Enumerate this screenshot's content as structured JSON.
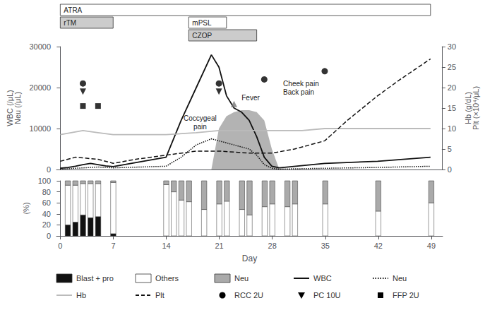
{
  "chart_data": [
    {
      "type": "line",
      "ylabel": "WBC (/μL)\nNeu (/μL)",
      "y2label": "Hb (g/dL)\nPlt (×10⁴/μL)",
      "xlim": [
        -0.5,
        50.5
      ],
      "ylim": [
        0,
        30000
      ],
      "yticks": [
        0,
        10000,
        20000,
        30000
      ],
      "y2lim": [
        0,
        30
      ],
      "y2ticks": [
        0,
        5,
        10,
        15,
        20,
        25,
        30
      ],
      "tick_labels": "y",
      "grid": false,
      "series": [
        {
          "name": "WBC",
          "type": "line",
          "color": "#111111",
          "line_style": "solid",
          "x": [
            0,
            1,
            2,
            3,
            4,
            5,
            6,
            7,
            14,
            16,
            18,
            20,
            21,
            22,
            23,
            24,
            25,
            26,
            27,
            28,
            29,
            35,
            42,
            49
          ],
          "values": [
            300,
            500,
            800,
            1200,
            1500,
            1200,
            900,
            700,
            3000,
            12000,
            20000,
            28000,
            25000,
            18000,
            15000,
            14000,
            12000,
            8000,
            3000,
            800,
            400,
            1500,
            2000,
            3000
          ]
        },
        {
          "name": "Neu",
          "type": "line",
          "color": "#111111",
          "line_style": "dotted",
          "x": [
            0,
            1,
            2,
            3,
            4,
            5,
            6,
            7,
            14,
            16,
            18,
            20,
            21,
            22,
            23,
            24,
            25,
            26,
            27,
            28,
            29,
            35,
            42,
            49
          ],
          "values": [
            100,
            200,
            300,
            400,
            500,
            600,
            500,
            400,
            800,
            3000,
            6000,
            7500,
            7000,
            6500,
            6000,
            5500,
            5000,
            3500,
            1200,
            300,
            100,
            300,
            500,
            800
          ]
        },
        {
          "name": "Hb",
          "type": "line",
          "axis": "y2",
          "color": "#bbbbbb",
          "line_style": "solid",
          "x": [
            0,
            3,
            5,
            7,
            10,
            14,
            18,
            21,
            24,
            28,
            32,
            35,
            40,
            42,
            46,
            49
          ],
          "values": [
            8.5,
            9.5,
            9.0,
            8.5,
            8.5,
            8.5,
            9.0,
            9.5,
            9.5,
            9.5,
            9.5,
            10.0,
            10.0,
            10.0,
            10.0,
            10.0
          ]
        },
        {
          "name": "Plt",
          "type": "line",
          "axis": "y2",
          "color": "#111111",
          "line_style": "dashed",
          "x": [
            0,
            2,
            5,
            7,
            10,
            14,
            18,
            21,
            25,
            28,
            31,
            35,
            38,
            42,
            45,
            49
          ],
          "values": [
            2.0,
            3.0,
            2.5,
            1.5,
            2.5,
            3.5,
            4.5,
            4.5,
            4.0,
            4.0,
            5.0,
            7.0,
            12.0,
            18.0,
            22.0,
            27.0
          ]
        },
        {
          "name": "RCC 2U",
          "type": "scatter",
          "marker": "circle",
          "color": "#000000",
          "x": [
            3,
            21,
            27,
            35
          ],
          "values": [
            21000,
            21000,
            22000,
            24000
          ]
        },
        {
          "name": "PC 10U",
          "type": "scatter",
          "marker": "triangle-down",
          "color": "#000000",
          "x": [
            3,
            21
          ],
          "values": [
            19000,
            19000
          ]
        },
        {
          "name": "FFP 2U",
          "type": "scatter",
          "marker": "square",
          "color": "#000000",
          "x": [
            3,
            5
          ],
          "values": [
            15500,
            15500
          ]
        },
        {
          "type": "area",
          "color": "#999999",
          "x": [
            20,
            21,
            22,
            23,
            24,
            25,
            26,
            27,
            28,
            29
          ],
          "values": [
            0,
            10000,
            13000,
            14000,
            14500,
            14500,
            14000,
            12000,
            5000,
            0
          ]
        },
        {
          "type": "scatter",
          "marker": "triangle",
          "color": "#777777",
          "x": [
            23
          ],
          "values": [
            16000
          ]
        }
      ],
      "annotations": [
        {
          "text": "Coccygeal\npain",
          "x": 18.5,
          "y": 13500
        },
        {
          "text": "Cheek pain\nBack pain",
          "x": 29.5,
          "y": 20000
        },
        {
          "text": "Fever",
          "x": 24.0,
          "y": 18500
        }
      ],
      "treatments": [
        {
          "name": "ATRA",
          "start": 0,
          "end": 49,
          "color": "#ffffff"
        },
        {
          "name": "rTM",
          "start": 0,
          "end": 7,
          "color": "#cccccc"
        },
        {
          "name": "mPSL",
          "start": 17,
          "end": 22,
          "color": "#ffffff"
        },
        {
          "name": "CZOP",
          "start": 17,
          "end": 26,
          "color": "#cccccc"
        }
      ]
    },
    {
      "type": "bar",
      "stacked": true,
      "xlabel": "Day",
      "ylabel": "(%)",
      "xlim": [
        -0.5,
        50.5
      ],
      "xticks": [
        0,
        7,
        14,
        21,
        28,
        35,
        42,
        49
      ],
      "ylim": [
        0,
        100
      ],
      "yticks": [
        0,
        20,
        40,
        60,
        80,
        100
      ],
      "grid": false,
      "x": [
        1,
        2,
        3,
        4,
        5,
        7,
        14,
        15,
        16,
        17,
        19,
        21,
        22,
        24,
        25,
        27,
        28,
        30,
        31,
        35,
        42,
        49
      ],
      "series": [
        {
          "name": "Blast + pro",
          "color": "#111111",
          "values": [
            20,
            25,
            38,
            33,
            35,
            4,
            0,
            0,
            0,
            0,
            0,
            0,
            0,
            0,
            0,
            0,
            0,
            0,
            0,
            0,
            0,
            0
          ]
        },
        {
          "name": "Others",
          "color": "#ffffff",
          "values": [
            72,
            67,
            57,
            62,
            60,
            93,
            93,
            80,
            65,
            62,
            48,
            58,
            63,
            48,
            38,
            53,
            58,
            53,
            58,
            58,
            45,
            60
          ]
        },
        {
          "name": "Neu",
          "color": "#aaaaaa",
          "values": [
            8,
            8,
            5,
            5,
            5,
            3,
            7,
            20,
            35,
            38,
            52,
            42,
            37,
            52,
            62,
            47,
            42,
            47,
            42,
            42,
            55,
            40
          ]
        }
      ]
    }
  ]
}
